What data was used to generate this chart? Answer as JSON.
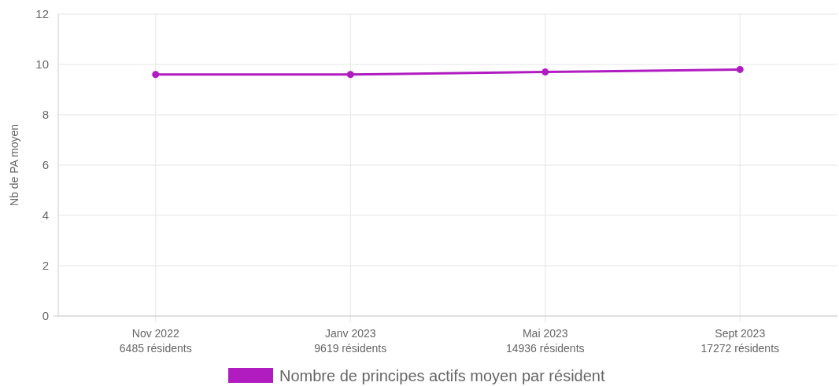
{
  "chart_data": {
    "type": "line",
    "ylabel": "Nb de PA moyen",
    "categories": [
      "Nov 2022\n6485 résidents",
      "Janv 2023\n9619 résidents",
      "Mai 2023\n14936 résidents",
      "Sept 2023\n17272 résidents"
    ],
    "series": [
      {
        "name": "Nombre de principes actifs moyen par résident",
        "color": "#b01cc0",
        "values": [
          9.6,
          9.6,
          9.7,
          9.8
        ]
      }
    ],
    "ylim": [
      0,
      12
    ],
    "yticks": [
      0,
      2,
      4,
      6,
      8,
      10,
      12
    ],
    "grid": true,
    "legend": "bottom",
    "marker": "circle"
  }
}
